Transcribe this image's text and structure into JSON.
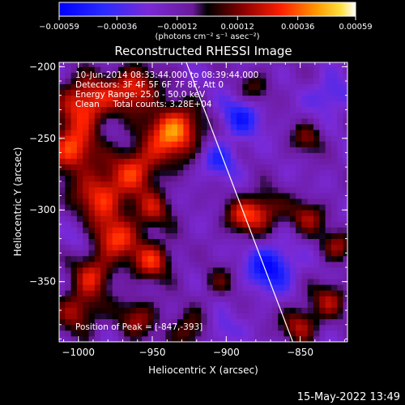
{
  "chart_data": {
    "type": "heatmap",
    "title": "Reconstructed RHESSI Image",
    "xlabel": "Heliocentric X (arcsec)",
    "ylabel": "Heliocentric Y (arcsec)",
    "xlim": [
      -1013,
      -818
    ],
    "ylim": [
      -392,
      -197
    ],
    "x_ticks": [
      -1000,
      -950,
      -900,
      -850
    ],
    "x_tick_labels": [
      "−1000",
      "−950",
      "−900",
      "−850"
    ],
    "y_ticks": [
      -200,
      -250,
      -300,
      -350
    ],
    "y_tick_labels": [
      "−200",
      "−250",
      "−300",
      "−350"
    ],
    "colorbar": {
      "ticks": [
        -0.00059,
        -0.00036,
        -0.00012,
        0.00012,
        0.00036,
        0.00059
      ],
      "tick_labels": [
        "−0.00059",
        "−0.00036",
        "−0.00012",
        "0.00012",
        "0.00036",
        "0.00059"
      ],
      "unit_label": "(photons cm⁻² s⁻¹ asec⁻²)",
      "range": [
        -0.00059,
        0.00059
      ]
    },
    "annotations": [
      "10-Jun-2014 08:33:44.000 to 08:39:44.000",
      "Detectors: 3F 4F 5F 6F 7F 8F, Att 0",
      "Energy Range: 25.0 - 50.0 keV",
      "Clean     Total counts: 3.28E+04"
    ],
    "peak_label": "Position of Peak = [-847,-393]",
    "peak": [
      -847,
      -393
    ],
    "limb_line": {
      "x": [
        -927,
        -855
      ],
      "y": [
        -197,
        -392
      ]
    },
    "source_blobs": [
      {
        "x": -935,
        "y": -245,
        "amp": 0.00059,
        "sigma": 13
      },
      {
        "x": -962,
        "y": -215,
        "amp": 0.00045,
        "sigma": 11
      },
      {
        "x": -995,
        "y": -225,
        "amp": 0.0005,
        "sigma": 13
      },
      {
        "x": -1005,
        "y": -258,
        "amp": 0.00048,
        "sigma": 12
      },
      {
        "x": -960,
        "y": -270,
        "amp": 0.0004,
        "sigma": 12
      },
      {
        "x": -985,
        "y": -290,
        "amp": 0.00045,
        "sigma": 13
      },
      {
        "x": -950,
        "y": -300,
        "amp": 0.0003,
        "sigma": 10
      },
      {
        "x": -975,
        "y": -320,
        "amp": 0.00042,
        "sigma": 11
      },
      {
        "x": -950,
        "y": -335,
        "amp": 0.0004,
        "sigma": 10
      },
      {
        "x": -990,
        "y": -345,
        "amp": 0.00035,
        "sigma": 10
      },
      {
        "x": -1000,
        "y": -370,
        "amp": 0.00035,
        "sigma": 11
      },
      {
        "x": -960,
        "y": -375,
        "amp": 0.0003,
        "sigma": 10
      },
      {
        "x": -925,
        "y": -385,
        "amp": 0.00028,
        "sigma": 10
      },
      {
        "x": -875,
        "y": -300,
        "amp": 0.00035,
        "sigma": 10
      },
      {
        "x": -845,
        "y": -305,
        "amp": 0.0003,
        "sigma": 9
      },
      {
        "x": -890,
        "y": -305,
        "amp": 0.0003,
        "sigma": 9
      },
      {
        "x": -850,
        "y": -380,
        "amp": 0.00035,
        "sigma": 9
      },
      {
        "x": -830,
        "y": -362,
        "amp": 0.0003,
        "sigma": 9
      },
      {
        "x": -825,
        "y": -325,
        "amp": 0.00028,
        "sigma": 8
      },
      {
        "x": -845,
        "y": -250,
        "amp": 0.00025,
        "sigma": 8
      },
      {
        "x": -880,
        "y": -215,
        "amp": 0.00022,
        "sigma": 8
      },
      {
        "x": -905,
        "y": -350,
        "amp": 0.0002,
        "sigma": 8
      },
      {
        "x": -890,
        "y": -235,
        "amp": -0.0003,
        "sigma": 10
      },
      {
        "x": -870,
        "y": -340,
        "amp": -0.0004,
        "sigma": 11
      },
      {
        "x": -905,
        "y": -265,
        "amp": -0.00025,
        "sigma": 9
      },
      {
        "x": -830,
        "y": -220,
        "amp": -0.00022,
        "sigma": 9
      },
      {
        "x": -905,
        "y": -385,
        "amp": -0.0002,
        "sigma": 8
      },
      {
        "x": -1000,
        "y": -320,
        "amp": -0.0001,
        "sigma": 6
      }
    ]
  },
  "footer": {
    "timestamp": "15-May-2022 13:49"
  }
}
